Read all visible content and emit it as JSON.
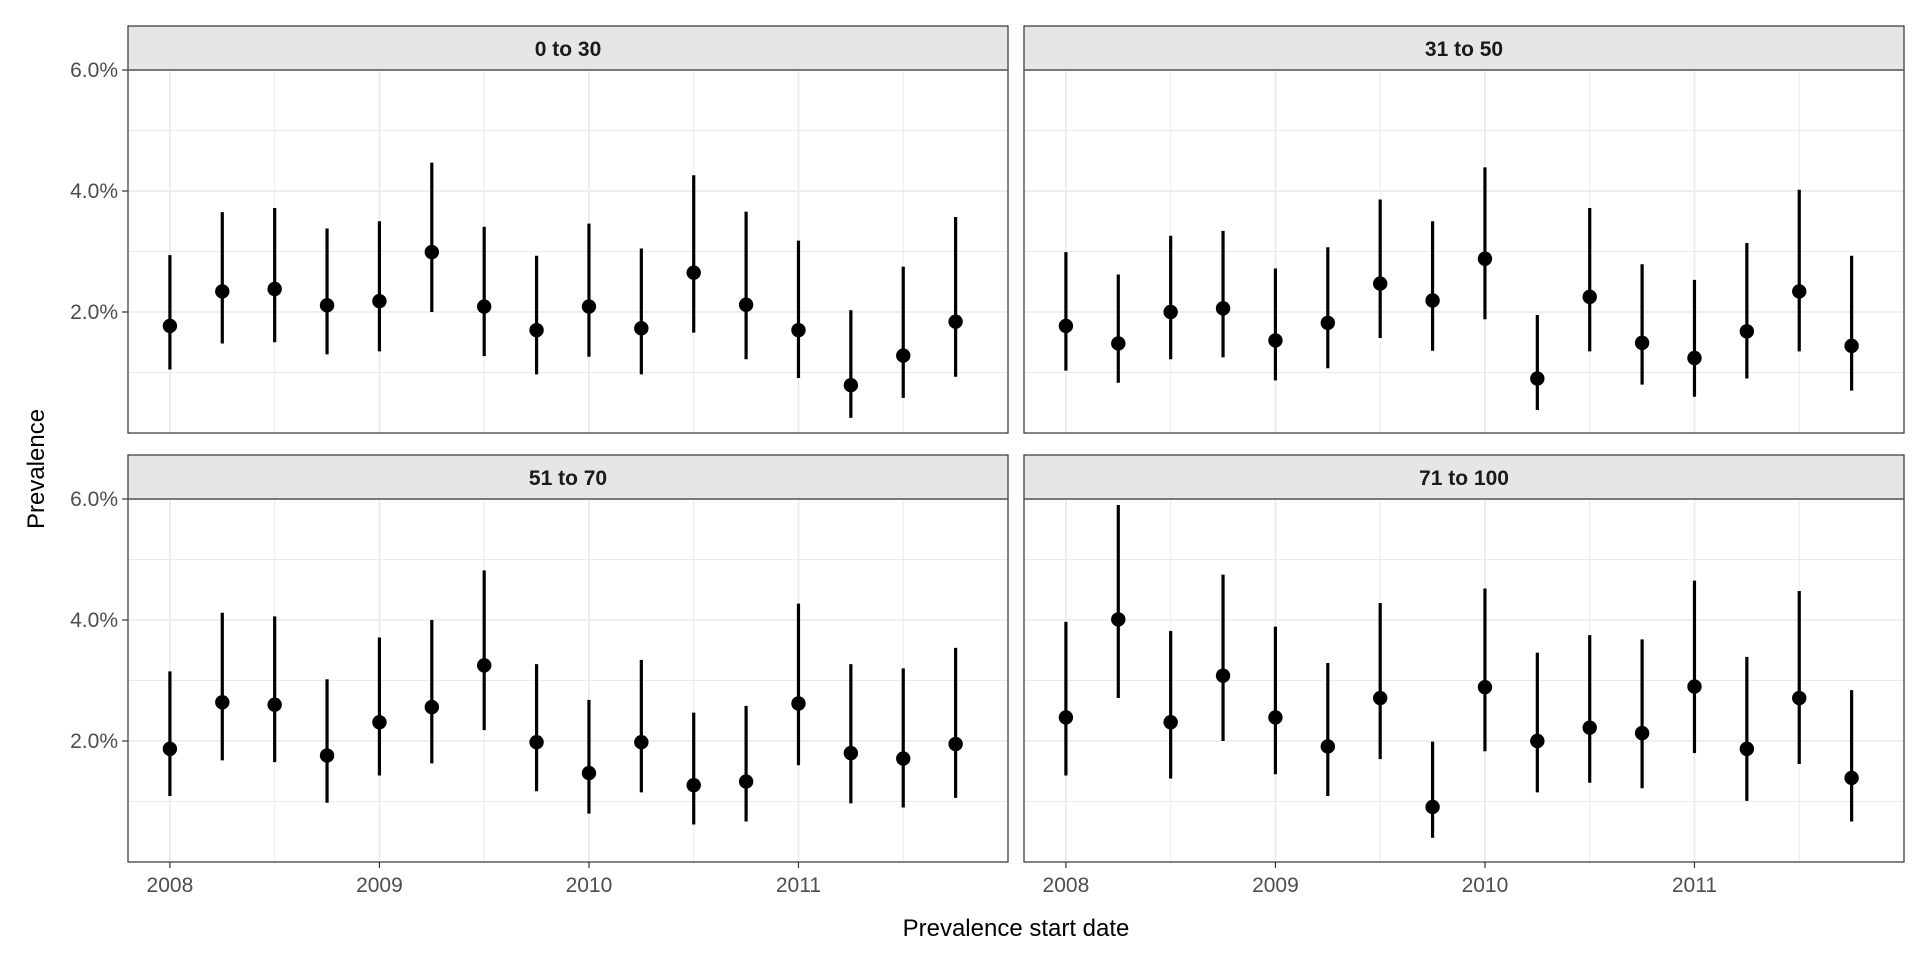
{
  "chart_data": {
    "type": "scatter",
    "subtype": "point-range, faceted 2x2",
    "xlabel": "Prevalence start date",
    "ylabel": "Prevalence",
    "x_tick_labels": [
      "2008",
      "2009",
      "2010",
      "2011"
    ],
    "y_tick_labels": [
      "2.0%",
      "4.0%",
      "6.0%"
    ],
    "x_range": [
      2007.8,
      2012.0
    ],
    "y_range": [
      0.0,
      0.06
    ],
    "grid": true,
    "x": [
      2008.0,
      2008.25,
      2008.5,
      2008.75,
      2009.0,
      2009.25,
      2009.5,
      2009.75,
      2010.0,
      2010.25,
      2010.5,
      2010.75,
      2011.0,
      2011.25,
      2011.5,
      2011.75
    ],
    "facets": [
      {
        "label": "0 to 30",
        "values": [
          0.0177,
          0.0234,
          0.0238,
          0.0211,
          0.0218,
          0.0299,
          0.0209,
          0.017,
          0.0209,
          0.0173,
          0.0265,
          0.0212,
          0.017,
          0.0079,
          0.0128,
          0.0184
        ],
        "lower": [
          0.0105,
          0.0148,
          0.015,
          0.013,
          0.0135,
          0.02,
          0.0127,
          0.0097,
          0.0126,
          0.0097,
          0.0166,
          0.0122,
          0.0091,
          0.0025,
          0.0058,
          0.0093
        ],
        "upper": [
          0.0294,
          0.0365,
          0.0372,
          0.0338,
          0.035,
          0.0447,
          0.0341,
          0.0293,
          0.0346,
          0.0305,
          0.0426,
          0.0366,
          0.0318,
          0.0203,
          0.0275,
          0.0357
        ]
      },
      {
        "label": "31 to 50",
        "values": [
          0.0177,
          0.0148,
          0.02,
          0.0206,
          0.0153,
          0.0182,
          0.0247,
          0.0219,
          0.0288,
          0.009,
          0.0225,
          0.0149,
          0.0124,
          0.0168,
          0.0234,
          0.0144
        ],
        "lower": [
          0.0103,
          0.0083,
          0.0122,
          0.0125,
          0.0087,
          0.0107,
          0.0157,
          0.0136,
          0.0188,
          0.0038,
          0.0135,
          0.008,
          0.006,
          0.009,
          0.0135,
          0.007
        ],
        "upper": [
          0.0299,
          0.0262,
          0.0326,
          0.0334,
          0.0272,
          0.0307,
          0.0386,
          0.035,
          0.0439,
          0.0195,
          0.0372,
          0.0279,
          0.0253,
          0.0314,
          0.0402,
          0.0293
        ]
      },
      {
        "label": "51 to 70",
        "values": [
          0.0187,
          0.0264,
          0.026,
          0.0176,
          0.0231,
          0.0256,
          0.0325,
          0.0198,
          0.0147,
          0.0198,
          0.0127,
          0.0133,
          0.0262,
          0.018,
          0.0171,
          0.0195
        ],
        "lower": [
          0.0109,
          0.0168,
          0.0165,
          0.0098,
          0.0143,
          0.0163,
          0.0218,
          0.0117,
          0.008,
          0.0115,
          0.0062,
          0.0067,
          0.016,
          0.0097,
          0.009,
          0.0106
        ],
        "upper": [
          0.0315,
          0.0412,
          0.0406,
          0.0302,
          0.0371,
          0.04,
          0.0482,
          0.0327,
          0.0268,
          0.0334,
          0.0247,
          0.0258,
          0.0427,
          0.0327,
          0.032,
          0.0354
        ]
      },
      {
        "label": "71 to 100",
        "values": [
          0.0239,
          0.0401,
          0.0231,
          0.0308,
          0.0239,
          0.0191,
          0.0271,
          0.0091,
          0.0289,
          0.02,
          0.0222,
          0.0213,
          0.029,
          0.0187,
          0.0271,
          0.0139
        ],
        "lower": [
          0.0143,
          0.0271,
          0.0138,
          0.02,
          0.0145,
          0.0109,
          0.017,
          0.004,
          0.0183,
          0.0115,
          0.0131,
          0.0122,
          0.018,
          0.0101,
          0.0162,
          0.0067
        ],
        "upper": [
          0.0397,
          0.059,
          0.0382,
          0.0475,
          0.0389,
          0.0329,
          0.0428,
          0.0199,
          0.0452,
          0.0346,
          0.0375,
          0.0368,
          0.0465,
          0.0339,
          0.0448,
          0.0284
        ]
      }
    ]
  },
  "colors": {
    "point": "#000000",
    "strip_background": "#e6e6e6",
    "strip_border": "#333333",
    "grid": "#ebebeb",
    "panel_border": "#333333"
  }
}
